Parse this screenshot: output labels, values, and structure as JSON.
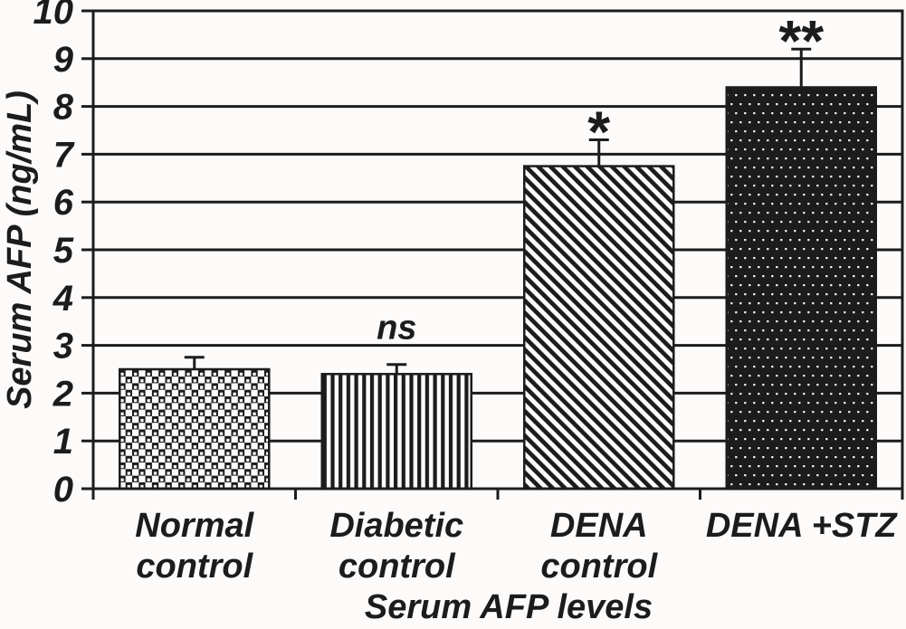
{
  "chart_data": {
    "type": "bar",
    "title": "Serum AFP levels",
    "ylabel": "Serum AFP (ng/mL)",
    "xlabel": "",
    "ylim": [
      0,
      10
    ],
    "yticks": [
      0,
      1,
      2,
      3,
      4,
      5,
      6,
      7,
      8,
      9,
      10
    ],
    "grid": "horizontal",
    "legend": "none",
    "categories": [
      "Normal control",
      "Diabetic control",
      "DENA control",
      "DENA +STZ"
    ],
    "category_lines": [
      [
        "Normal",
        "control"
      ],
      [
        "Diabetic",
        "control"
      ],
      [
        "DENA",
        "control"
      ],
      [
        "DENA +STZ"
      ]
    ],
    "values": [
      2.5,
      2.4,
      6.75,
      8.4
    ],
    "errors": [
      0.25,
      0.2,
      0.55,
      0.8
    ],
    "significance": [
      "",
      "ns",
      "*",
      "**"
    ],
    "patterns": [
      "checker-dots",
      "vertical-stripes",
      "diagonal-stripes",
      "black-white-dots"
    ],
    "colors": {
      "ink": "#1c1c1c",
      "background": "#fdfafa",
      "dot_white": "#ffffff"
    }
  }
}
